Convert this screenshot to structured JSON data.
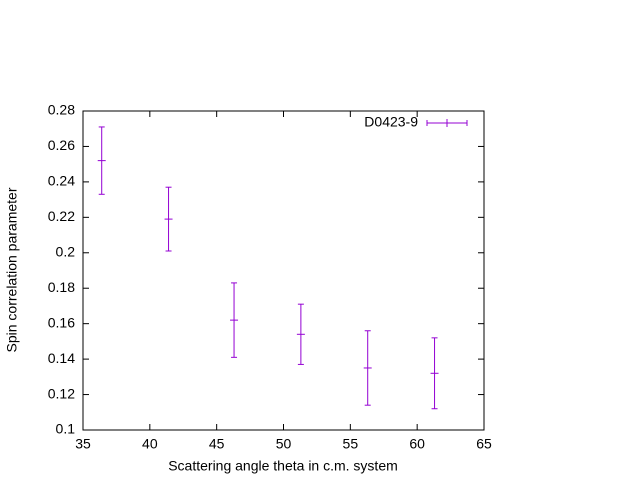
{
  "chart_data": {
    "type": "errorbar",
    "xlabel": "Scattering angle theta in c.m. system",
    "ylabel": "Spin correlation parameter",
    "xlim": [
      35,
      65
    ],
    "xticks": [
      35,
      40,
      45,
      50,
      55,
      60,
      65
    ],
    "ylim": [
      0.1,
      0.28
    ],
    "yticks": [
      0.1,
      0.12,
      0.14,
      0.16,
      0.18,
      0.2,
      0.22,
      0.24,
      0.26,
      0.28
    ],
    "legend": "upper right",
    "series": [
      {
        "name": "D0423-9",
        "color": "#9400d3",
        "x": [
          36.4,
          41.4,
          46.3,
          51.3,
          56.3,
          61.3
        ],
        "values": [
          0.252,
          0.219,
          0.162,
          0.154,
          0.135,
          0.132
        ],
        "errors": [
          0.019,
          0.018,
          0.021,
          0.017,
          0.021,
          0.02
        ]
      }
    ]
  }
}
